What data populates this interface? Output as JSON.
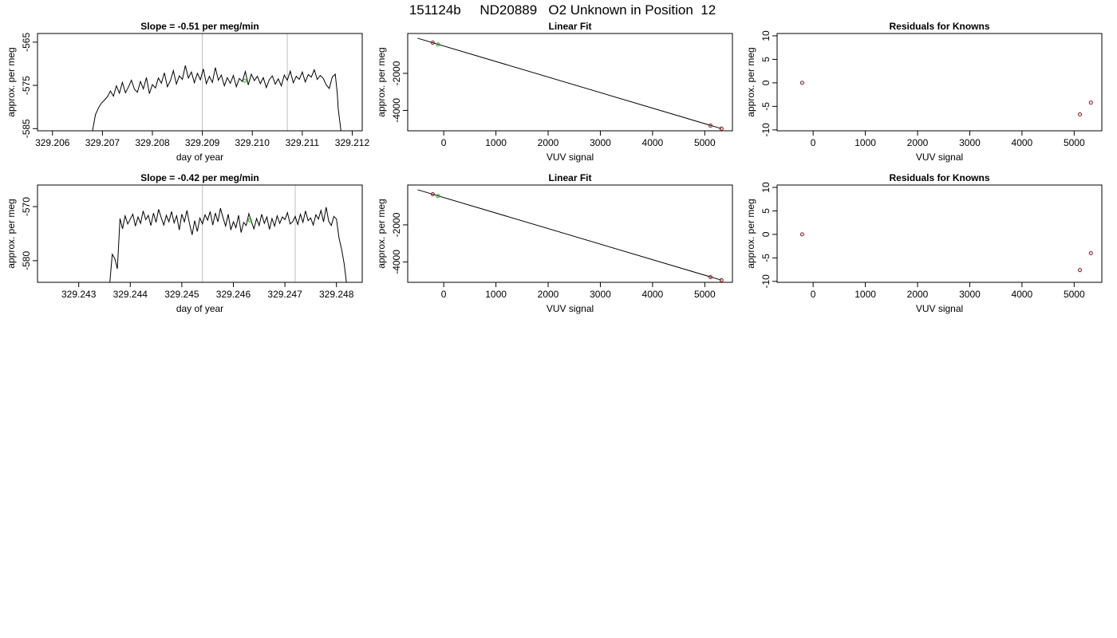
{
  "page_title": "151124b     ND20889   O2 Unknown in Position  12",
  "colors": {
    "trace": "#000000",
    "marker_known": "#cc0000",
    "marker_unknown": "#00cc00",
    "vline": "#bebebe",
    "frame": "#000000"
  },
  "chart_data": [
    {
      "type": "line",
      "title": "Slope =  -0.51  per meg/min",
      "xlabel": "day of year",
      "ylabel": "approx. per meg",
      "xlim": [
        329.2057,
        329.2122
      ],
      "ylim": [
        -585.5,
        -563.0
      ],
      "xticks": [
        329.206,
        329.207,
        329.208,
        329.209,
        329.21,
        329.211,
        329.212
      ],
      "xtick_labels": [
        "329.206",
        "329.207",
        "329.208",
        "329.209",
        "329.210",
        "329.211",
        "329.212"
      ],
      "yticks": [
        -565,
        -575,
        -585
      ],
      "ytick_labels": [
        "-565",
        "-575",
        "-585"
      ],
      "vlines": [
        329.209,
        329.2107
      ],
      "series_x": [
        329.2068,
        329.20686,
        329.20692,
        329.20698,
        329.20704,
        329.2071,
        329.20716,
        329.20722,
        329.20728,
        329.20734,
        329.2074,
        329.20746,
        329.20752,
        329.20758,
        329.20764,
        329.2077,
        329.20776,
        329.20782,
        329.20788,
        329.20794,
        329.208,
        329.20806,
        329.20812,
        329.20818,
        329.20824,
        329.2083,
        329.20836,
        329.20842,
        329.20848,
        329.20854,
        329.2086,
        329.20866,
        329.20872,
        329.20878,
        329.20884,
        329.2089,
        329.20896,
        329.20902,
        329.20908,
        329.20914,
        329.2092,
        329.20926,
        329.20932,
        329.20938,
        329.20944,
        329.2095,
        329.20956,
        329.20962,
        329.20968,
        329.20974,
        329.2098,
        329.20986,
        329.20992,
        329.20998,
        329.21004,
        329.2101,
        329.21016,
        329.21022,
        329.21028,
        329.21034,
        329.2104,
        329.21046,
        329.21052,
        329.21058,
        329.21064,
        329.2107,
        329.21076,
        329.21082,
        329.21088,
        329.21094,
        329.211,
        329.21106,
        329.21112,
        329.21118,
        329.21124,
        329.2113,
        329.21136,
        329.21142,
        329.21148,
        329.21154,
        329.2116,
        329.21166,
        329.2117,
        329.21172,
        329.21178
      ],
      "series_y": [
        -585.6,
        -581.8,
        -580.2,
        -579.1,
        -578.4,
        -577.6,
        -576.3,
        -577.5,
        -575.1,
        -576.8,
        -574.3,
        -576.7,
        -575.4,
        -573.8,
        -575.9,
        -576.6,
        -574.1,
        -575.8,
        -573.2,
        -576.9,
        -574.8,
        -575.6,
        -573.3,
        -574.5,
        -572.1,
        -575.3,
        -573.9,
        -571.6,
        -574.7,
        -572.8,
        -573.6,
        -570.4,
        -573.3,
        -571.9,
        -574.4,
        -572.2,
        -573.7,
        -571.2,
        -574.6,
        -572.9,
        -574.3,
        -570.9,
        -573.8,
        -572.6,
        -575.1,
        -573.2,
        -574.5,
        -572.7,
        -575.3,
        -573.4,
        -574.1,
        -571.8,
        -574.9,
        -572.4,
        -573.9,
        -572.9,
        -574.6,
        -573.2,
        -575.5,
        -573.7,
        -572.8,
        -574.7,
        -573.5,
        -575.1,
        -572.6,
        -573.8,
        -571.7,
        -574.4,
        -572.9,
        -573.6,
        -571.9,
        -574.2,
        -572.5,
        -573.1,
        -571.4,
        -573.6,
        -572.7,
        -573.4,
        -574.9,
        -575.7,
        -573.1,
        -572.4,
        -576.8,
        -580.4,
        -586.0
      ],
      "marker_unknown": [
        329.20985,
        -573.9
      ]
    },
    {
      "type": "scatter",
      "title": "Linear Fit",
      "xlabel": "VUV signal",
      "ylabel": "approx. per meg",
      "xlim": [
        -690,
        5530
      ],
      "ylim": [
        -5100,
        150
      ],
      "xticks": [
        0,
        1000,
        2000,
        3000,
        4000,
        5000
      ],
      "xtick_labels": [
        "0",
        "1000",
        "2000",
        "3000",
        "4000",
        "5000"
      ],
      "yticks": [
        -2000,
        -4000
      ],
      "ytick_labels": [
        "-2000",
        "-4000"
      ],
      "fit_line": {
        "x": [
          -500,
          5320
        ],
        "y": [
          -105,
          -4985
        ]
      },
      "points_known": [
        [
          -210,
          -345
        ],
        [
          5110,
          -4820
        ],
        [
          5320,
          -4985
        ]
      ],
      "points_unknown": [
        [
          -110,
          -440
        ]
      ]
    },
    {
      "type": "scatter",
      "title": "Residuals for Knowns",
      "xlabel": "VUV signal",
      "ylabel": "approx. per meg",
      "xlim": [
        -690,
        5530
      ],
      "ylim": [
        -10.2,
        10.5
      ],
      "xticks": [
        0,
        1000,
        2000,
        3000,
        4000,
        5000
      ],
      "xtick_labels": [
        "0",
        "1000",
        "2000",
        "3000",
        "4000",
        "5000"
      ],
      "yticks": [
        10,
        5,
        0,
        -5,
        -10
      ],
      "ytick_labels": [
        "10",
        "5",
        "0",
        "-5",
        "-10"
      ],
      "points_known": [
        [
          -210,
          0.0
        ],
        [
          5110,
          -6.7
        ],
        [
          5320,
          -4.2
        ]
      ]
    },
    {
      "type": "line",
      "title": "Slope =  -0.42  per meg/min",
      "xlabel": "day of year",
      "ylabel": "approx. per meg",
      "xlim": [
        329.2422,
        329.2485
      ],
      "ylim": [
        -584.0,
        -566.0
      ],
      "xticks": [
        329.243,
        329.244,
        329.245,
        329.246,
        329.247,
        329.248
      ],
      "xtick_labels": [
        "329.243",
        "329.244",
        "329.245",
        "329.246",
        "329.247",
        "329.248"
      ],
      "yticks": [
        -570,
        -580
      ],
      "ytick_labels": [
        "-570",
        "-580"
      ],
      "vlines": [
        329.2454,
        329.2472
      ],
      "series_x": [
        329.2436,
        329.24365,
        329.2437,
        329.24375,
        329.2438,
        329.24385,
        329.2439,
        329.24395,
        329.244,
        329.24405,
        329.2441,
        329.24415,
        329.2442,
        329.24425,
        329.2443,
        329.24435,
        329.2444,
        329.24445,
        329.2445,
        329.24455,
        329.2446,
        329.24465,
        329.2447,
        329.24475,
        329.2448,
        329.24485,
        329.2449,
        329.24495,
        329.245,
        329.24505,
        329.2451,
        329.24515,
        329.2452,
        329.24525,
        329.2453,
        329.24535,
        329.2454,
        329.24545,
        329.2455,
        329.24555,
        329.2456,
        329.24565,
        329.2457,
        329.24575,
        329.2458,
        329.24585,
        329.2459,
        329.24595,
        329.246,
        329.24605,
        329.2461,
        329.24615,
        329.2462,
        329.24625,
        329.2463,
        329.24635,
        329.2464,
        329.24645,
        329.2465,
        329.24655,
        329.2466,
        329.24665,
        329.2467,
        329.24675,
        329.2468,
        329.24685,
        329.2469,
        329.24695,
        329.247,
        329.24705,
        329.2471,
        329.24715,
        329.2472,
        329.24725,
        329.2473,
        329.24735,
        329.2474,
        329.24745,
        329.2475,
        329.24755,
        329.2476,
        329.24765,
        329.2477,
        329.24775,
        329.2478,
        329.24785,
        329.2479,
        329.24795,
        329.248,
        329.24805,
        329.2481,
        329.24815,
        329.2482
      ],
      "series_y": [
        -584.5,
        -578.8,
        -579.6,
        -581.5,
        -572.2,
        -574.1,
        -571.7,
        -573.2,
        -572.3,
        -571.4,
        -573.6,
        -571.9,
        -573.1,
        -570.8,
        -572.4,
        -571.6,
        -573.5,
        -571.2,
        -572.9,
        -570.5,
        -572.0,
        -573.4,
        -571.6,
        -572.8,
        -570.9,
        -573.0,
        -571.7,
        -574.3,
        -571.4,
        -572.8,
        -570.7,
        -573.2,
        -575.2,
        -572.6,
        -574.6,
        -572.1,
        -573.2,
        -571.5,
        -572.5,
        -570.9,
        -573.4,
        -571.2,
        -572.8,
        -570.3,
        -572.1,
        -573.6,
        -571.4,
        -574.3,
        -572.8,
        -573.9,
        -571.6,
        -574.8,
        -572.9,
        -573.5,
        -571.3,
        -572.8,
        -574.1,
        -572.2,
        -573.5,
        -571.4,
        -573.1,
        -571.9,
        -574.2,
        -572.2,
        -573.6,
        -571.7,
        -573.1,
        -571.9,
        -572.4,
        -571.1,
        -573.2,
        -572.8,
        -571.8,
        -573.3,
        -571.4,
        -572.9,
        -570.8,
        -572.6,
        -572.1,
        -573.4,
        -571.5,
        -572.3,
        -570.7,
        -572.8,
        -570.1,
        -572.7,
        -573.5,
        -571.8,
        -572.3,
        -575.8,
        -577.9,
        -580.6,
        -584.5
      ],
      "marker_unknown": [
        329.24632,
        -572.5
      ]
    },
    {
      "type": "scatter",
      "title": "Linear Fit",
      "xlabel": "VUV signal",
      "ylabel": "approx. per meg",
      "xlim": [
        -690,
        5530
      ],
      "ylim": [
        -5100,
        150
      ],
      "xticks": [
        0,
        1000,
        2000,
        3000,
        4000,
        5000
      ],
      "xtick_labels": [
        "0",
        "1000",
        "2000",
        "3000",
        "4000",
        "5000"
      ],
      "yticks": [
        -2000,
        -4000
      ],
      "ytick_labels": [
        "-2000",
        "-4000"
      ],
      "fit_line": {
        "x": [
          -500,
          5320
        ],
        "y": [
          -105,
          -4985
        ]
      },
      "points_known": [
        [
          -210,
          -345
        ],
        [
          5110,
          -4820
        ],
        [
          5320,
          -4985
        ]
      ],
      "points_unknown": [
        [
          -110,
          -440
        ]
      ]
    },
    {
      "type": "scatter",
      "title": "Residuals for Knowns",
      "xlabel": "VUV signal",
      "ylabel": "approx. per meg",
      "xlim": [
        -690,
        5530
      ],
      "ylim": [
        -10.2,
        10.5
      ],
      "xticks": [
        0,
        1000,
        2000,
        3000,
        4000,
        5000
      ],
      "xtick_labels": [
        "0",
        "1000",
        "2000",
        "3000",
        "4000",
        "5000"
      ],
      "yticks": [
        10,
        5,
        0,
        -5,
        -10
      ],
      "ytick_labels": [
        "10",
        "5",
        "0",
        "-5",
        "-10"
      ],
      "points_known": [
        [
          -210,
          0.0
        ],
        [
          5110,
          -7.6
        ],
        [
          5320,
          -4.0
        ]
      ]
    }
  ]
}
